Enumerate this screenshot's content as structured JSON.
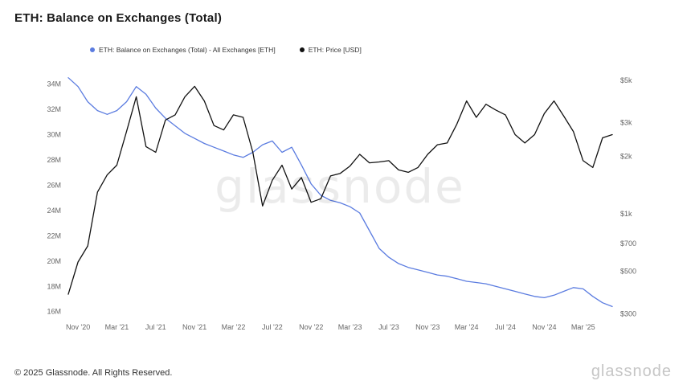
{
  "header": {
    "title": "ETH: Balance on Exchanges (Total)"
  },
  "legend": [
    {
      "label": "ETH: Balance on Exchanges (Total) - All Exchanges [ETH]",
      "color": "#5b7ce0"
    },
    {
      "label": "ETH: Price [USD]",
      "color": "#111111"
    }
  ],
  "watermark": "glassnode",
  "footer": {
    "copyright": "© 2025 Glassnode. All Rights Reserved.",
    "brand": "glassnode"
  },
  "chart_data": {
    "type": "line",
    "title": "ETH: Balance on Exchanges (Total)",
    "x": [
      "2020-10",
      "2020-11",
      "2020-12",
      "2021-01",
      "2021-02",
      "2021-03",
      "2021-04",
      "2021-05",
      "2021-06",
      "2021-07",
      "2021-08",
      "2021-09",
      "2021-10",
      "2021-11",
      "2021-12",
      "2022-01",
      "2022-02",
      "2022-03",
      "2022-04",
      "2022-05",
      "2022-06",
      "2022-07",
      "2022-08",
      "2022-09",
      "2022-10",
      "2022-11",
      "2022-12",
      "2023-01",
      "2023-02",
      "2023-03",
      "2023-04",
      "2023-05",
      "2023-06",
      "2023-07",
      "2023-08",
      "2023-09",
      "2023-10",
      "2023-11",
      "2023-12",
      "2024-01",
      "2024-02",
      "2024-03",
      "2024-04",
      "2024-05",
      "2024-06",
      "2024-07",
      "2024-08",
      "2024-09",
      "2024-10",
      "2024-11",
      "2024-12",
      "2025-01",
      "2025-02",
      "2025-03",
      "2025-04",
      "2025-05",
      "2025-06"
    ],
    "series": [
      {
        "name": "ETH: Balance on Exchanges (Total) - All Exchanges [ETH]",
        "axis": "left",
        "unit": "M ETH",
        "color": "#5b7ce0",
        "values": [
          34.5,
          33.8,
          32.6,
          31.9,
          31.6,
          31.9,
          32.6,
          33.8,
          33.2,
          32.1,
          31.3,
          30.7,
          30.1,
          29.7,
          29.3,
          29.0,
          28.7,
          28.4,
          28.2,
          28.6,
          29.2,
          29.5,
          28.6,
          29.0,
          27.6,
          26.1,
          25.2,
          24.8,
          24.6,
          24.3,
          23.8,
          22.4,
          21.0,
          20.3,
          19.8,
          19.5,
          19.3,
          19.1,
          18.9,
          18.8,
          18.6,
          18.4,
          18.3,
          18.2,
          18.0,
          17.8,
          17.6,
          17.4,
          17.2,
          17.1,
          17.3,
          17.6,
          17.9,
          17.8,
          17.2,
          16.7,
          16.4
        ]
      },
      {
        "name": "ETH: Price [USD]",
        "axis": "right",
        "unit": "USD",
        "color": "#111111",
        "values": [
          380,
          560,
          680,
          1300,
          1600,
          1800,
          2700,
          4100,
          2250,
          2100,
          3100,
          3300,
          4100,
          4650,
          3900,
          2900,
          2750,
          3300,
          3200,
          2100,
          1100,
          1500,
          1800,
          1350,
          1550,
          1150,
          1200,
          1580,
          1630,
          1780,
          2050,
          1850,
          1870,
          1900,
          1700,
          1650,
          1750,
          2050,
          2300,
          2350,
          2950,
          3900,
          3200,
          3750,
          3500,
          3300,
          2600,
          2350,
          2600,
          3350,
          3900,
          3250,
          2700,
          1900,
          1750,
          2500,
          2600
        ]
      }
    ],
    "left_axis": {
      "scale": "linear",
      "domain": [
        15.6,
        34.8
      ],
      "ticks": [
        {
          "label": "34M",
          "value": 34
        },
        {
          "label": "32M",
          "value": 32
        },
        {
          "label": "30M",
          "value": 30
        },
        {
          "label": "28M",
          "value": 28
        },
        {
          "label": "26M",
          "value": 26
        },
        {
          "label": "24M",
          "value": 24
        },
        {
          "label": "22M",
          "value": 22
        },
        {
          "label": "20M",
          "value": 20
        },
        {
          "label": "18M",
          "value": 18
        },
        {
          "label": "16M",
          "value": 16
        }
      ]
    },
    "right_axis": {
      "scale": "log",
      "domain": [
        290,
        5400
      ],
      "ticks": [
        {
          "label": "$5k",
          "value": 5000
        },
        {
          "label": "$3k",
          "value": 3000
        },
        {
          "label": "$2k",
          "value": 2000
        },
        {
          "label": "$1k",
          "value": 1000
        },
        {
          "label": "$700",
          "value": 700
        },
        {
          "label": "$500",
          "value": 500
        },
        {
          "label": "$300",
          "value": 300
        }
      ]
    },
    "x_ticks": [
      {
        "label": "Nov '20",
        "index": 1
      },
      {
        "label": "Mar '21",
        "index": 5
      },
      {
        "label": "Jul '21",
        "index": 9
      },
      {
        "label": "Nov '21",
        "index": 13
      },
      {
        "label": "Mar '22",
        "index": 17
      },
      {
        "label": "Jul '22",
        "index": 21
      },
      {
        "label": "Nov '22",
        "index": 25
      },
      {
        "label": "Mar '23",
        "index": 29
      },
      {
        "label": "Jul '23",
        "index": 33
      },
      {
        "label": "Nov '23",
        "index": 37
      },
      {
        "label": "Mar '24",
        "index": 41
      },
      {
        "label": "Jul '24",
        "index": 45
      },
      {
        "label": "Nov '24",
        "index": 49
      },
      {
        "label": "Mar '25",
        "index": 53
      }
    ],
    "grid": false,
    "legend_position": "top"
  }
}
